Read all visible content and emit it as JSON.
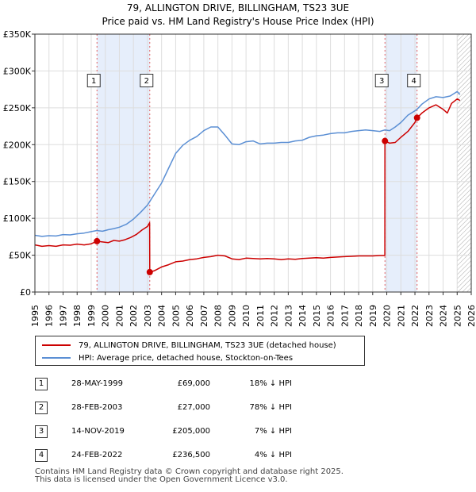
{
  "header": {
    "title_line1": "79, ALLINGTON DRIVE, BILLINGHAM, TS23 3UE",
    "title_line2": "Price paid vs. HM Land Registry's House Price Index (HPI)"
  },
  "chart_data": {
    "type": "line",
    "xlim": [
      1995,
      2026
    ],
    "ylim": [
      0,
      350000
    ],
    "y_ticks": [
      {
        "value": 0,
        "label": "£0"
      },
      {
        "value": 50000,
        "label": "£50K"
      },
      {
        "value": 100000,
        "label": "£100K"
      },
      {
        "value": 150000,
        "label": "£150K"
      },
      {
        "value": 200000,
        "label": "£200K"
      },
      {
        "value": 250000,
        "label": "£250K"
      },
      {
        "value": 300000,
        "label": "£300K"
      },
      {
        "value": 350000,
        "label": "£350K"
      }
    ],
    "x_ticks": [
      "1995",
      "1996",
      "1997",
      "1998",
      "1999",
      "2000",
      "2001",
      "2002",
      "2003",
      "2004",
      "2005",
      "2006",
      "2007",
      "2008",
      "2009",
      "2010",
      "2011",
      "2012",
      "2013",
      "2014",
      "2015",
      "2016",
      "2017",
      "2018",
      "2019",
      "2020",
      "2021",
      "2022",
      "2023",
      "2024",
      "2025",
      "2026"
    ],
    "grid": true,
    "shaded_periods": [
      [
        1999.41,
        2003.16
      ],
      [
        2019.87,
        2022.15
      ]
    ],
    "hatch_from": 2025.0,
    "series": [
      {
        "name": "79, ALLINGTON DRIVE, BILLINGHAM, TS23 3UE (detached house)",
        "color": "#cc0000",
        "points": [
          [
            1995.0,
            64000
          ],
          [
            1995.5,
            62000
          ],
          [
            1996.0,
            63000
          ],
          [
            1996.5,
            62000
          ],
          [
            1997.0,
            64000
          ],
          [
            1997.5,
            63500
          ],
          [
            1998.0,
            65000
          ],
          [
            1998.5,
            64000
          ],
          [
            1999.0,
            65500
          ],
          [
            1999.41,
            69000
          ],
          [
            1999.8,
            68000
          ],
          [
            2000.2,
            67000
          ],
          [
            2000.6,
            70000
          ],
          [
            2001.0,
            69000
          ],
          [
            2001.4,
            71000
          ],
          [
            2001.8,
            74000
          ],
          [
            2002.2,
            78000
          ],
          [
            2002.6,
            84000
          ],
          [
            2003.0,
            89000
          ],
          [
            2003.15,
            94000
          ],
          [
            2003.16,
            27000
          ],
          [
            2003.5,
            29000
          ],
          [
            2004.0,
            34000
          ],
          [
            2004.5,
            37000
          ],
          [
            2005.0,
            41000
          ],
          [
            2005.5,
            42000
          ],
          [
            2006.0,
            44000
          ],
          [
            2006.5,
            45000
          ],
          [
            2007.0,
            47000
          ],
          [
            2007.5,
            48000
          ],
          [
            2008.0,
            50000
          ],
          [
            2008.5,
            49000
          ],
          [
            2009.0,
            45000
          ],
          [
            2009.5,
            44000
          ],
          [
            2010.0,
            46000
          ],
          [
            2010.5,
            45500
          ],
          [
            2011.0,
            45000
          ],
          [
            2011.5,
            45500
          ],
          [
            2012.0,
            45000
          ],
          [
            2012.5,
            44000
          ],
          [
            2013.0,
            45000
          ],
          [
            2013.5,
            44500
          ],
          [
            2014.0,
            45500
          ],
          [
            2014.5,
            46000
          ],
          [
            2015.0,
            46500
          ],
          [
            2015.5,
            46000
          ],
          [
            2016.0,
            47000
          ],
          [
            2016.5,
            47500
          ],
          [
            2017.0,
            48000
          ],
          [
            2017.5,
            48500
          ],
          [
            2018.0,
            49000
          ],
          [
            2018.5,
            49000
          ],
          [
            2019.0,
            49000
          ],
          [
            2019.5,
            49500
          ],
          [
            2019.86,
            49500
          ],
          [
            2019.87,
            205000
          ],
          [
            2020.2,
            202000
          ],
          [
            2020.6,
            203000
          ],
          [
            2021.0,
            210000
          ],
          [
            2021.5,
            218000
          ],
          [
            2022.0,
            230000
          ],
          [
            2022.15,
            236500
          ],
          [
            2022.5,
            243000
          ],
          [
            2023.0,
            250000
          ],
          [
            2023.5,
            254000
          ],
          [
            2024.0,
            248000
          ],
          [
            2024.3,
            243000
          ],
          [
            2024.6,
            256000
          ],
          [
            2025.0,
            262000
          ],
          [
            2025.2,
            260000
          ]
        ]
      },
      {
        "name": "HPI: Average price, detached house, Stockton-on-Tees",
        "color": "#5b8fd4",
        "points": [
          [
            1995.0,
            77000
          ],
          [
            1995.5,
            75500
          ],
          [
            1996.0,
            76500
          ],
          [
            1996.5,
            76000
          ],
          [
            1997.0,
            78000
          ],
          [
            1997.5,
            77500
          ],
          [
            1998.0,
            79000
          ],
          [
            1998.5,
            80000
          ],
          [
            1999.0,
            82000
          ],
          [
            1999.41,
            83500
          ],
          [
            1999.8,
            82500
          ],
          [
            2000.2,
            84500
          ],
          [
            2000.6,
            86000
          ],
          [
            2001.0,
            88000
          ],
          [
            2001.5,
            92000
          ],
          [
            2002.0,
            99000
          ],
          [
            2002.5,
            108000
          ],
          [
            2003.0,
            118000
          ],
          [
            2003.5,
            133000
          ],
          [
            2004.0,
            148000
          ],
          [
            2004.5,
            168000
          ],
          [
            2005.0,
            188000
          ],
          [
            2005.5,
            199000
          ],
          [
            2006.0,
            206000
          ],
          [
            2006.5,
            211000
          ],
          [
            2007.0,
            219000
          ],
          [
            2007.5,
            224000
          ],
          [
            2008.0,
            224000
          ],
          [
            2008.5,
            213000
          ],
          [
            2009.0,
            201000
          ],
          [
            2009.5,
            200000
          ],
          [
            2010.0,
            204000
          ],
          [
            2010.5,
            205000
          ],
          [
            2011.0,
            201000
          ],
          [
            2011.5,
            202000
          ],
          [
            2012.0,
            202000
          ],
          [
            2012.5,
            203000
          ],
          [
            2013.0,
            203000
          ],
          [
            2013.5,
            205000
          ],
          [
            2014.0,
            206000
          ],
          [
            2014.5,
            210000
          ],
          [
            2015.0,
            212000
          ],
          [
            2015.5,
            213000
          ],
          [
            2016.0,
            215000
          ],
          [
            2016.5,
            216000
          ],
          [
            2017.0,
            216000
          ],
          [
            2017.5,
            218000
          ],
          [
            2018.0,
            219000
          ],
          [
            2018.5,
            220000
          ],
          [
            2019.0,
            219000
          ],
          [
            2019.5,
            218000
          ],
          [
            2019.87,
            220000
          ],
          [
            2020.2,
            219000
          ],
          [
            2020.6,
            224000
          ],
          [
            2021.0,
            230000
          ],
          [
            2021.5,
            240000
          ],
          [
            2022.0,
            246000
          ],
          [
            2022.15,
            248000
          ],
          [
            2022.5,
            255000
          ],
          [
            2023.0,
            262000
          ],
          [
            2023.5,
            265000
          ],
          [
            2024.0,
            264000
          ],
          [
            2024.5,
            266000
          ],
          [
            2025.0,
            272000
          ],
          [
            2025.2,
            268000
          ]
        ]
      }
    ],
    "sales": [
      {
        "id": "1",
        "x": 1999.41,
        "price": 69000
      },
      {
        "id": "2",
        "x": 2003.16,
        "price": 27000
      },
      {
        "id": "3",
        "x": 2019.87,
        "price": 205000
      },
      {
        "id": "4",
        "x": 2022.15,
        "price": 236500
      }
    ],
    "marker_label_y": 287000
  },
  "legend": {
    "property_label": "79, ALLINGTON DRIVE, BILLINGHAM, TS23 3UE (detached house)",
    "hpi_label": "HPI: Average price, detached house, Stockton-on-Tees"
  },
  "transactions": [
    {
      "num": "1",
      "date": "28-MAY-1999",
      "price": "£69,000",
      "hpi": "18% ↓ HPI"
    },
    {
      "num": "2",
      "date": "28-FEB-2003",
      "price": "£27,000",
      "hpi": "78% ↓ HPI"
    },
    {
      "num": "3",
      "date": "14-NOV-2019",
      "price": "£205,000",
      "hpi": "7% ↓ HPI"
    },
    {
      "num": "4",
      "date": "24-FEB-2022",
      "price": "£236,500",
      "hpi": "4% ↓ HPI"
    }
  ],
  "footer": {
    "line1": "Contains HM Land Registry data © Crown copyright and database right 2025.",
    "line2": "This data is licensed under the Open Government Licence v3.0."
  },
  "colors": {
    "property": "#cc0000",
    "hpi": "#5b8fd4",
    "shade": "#e6eefb"
  }
}
